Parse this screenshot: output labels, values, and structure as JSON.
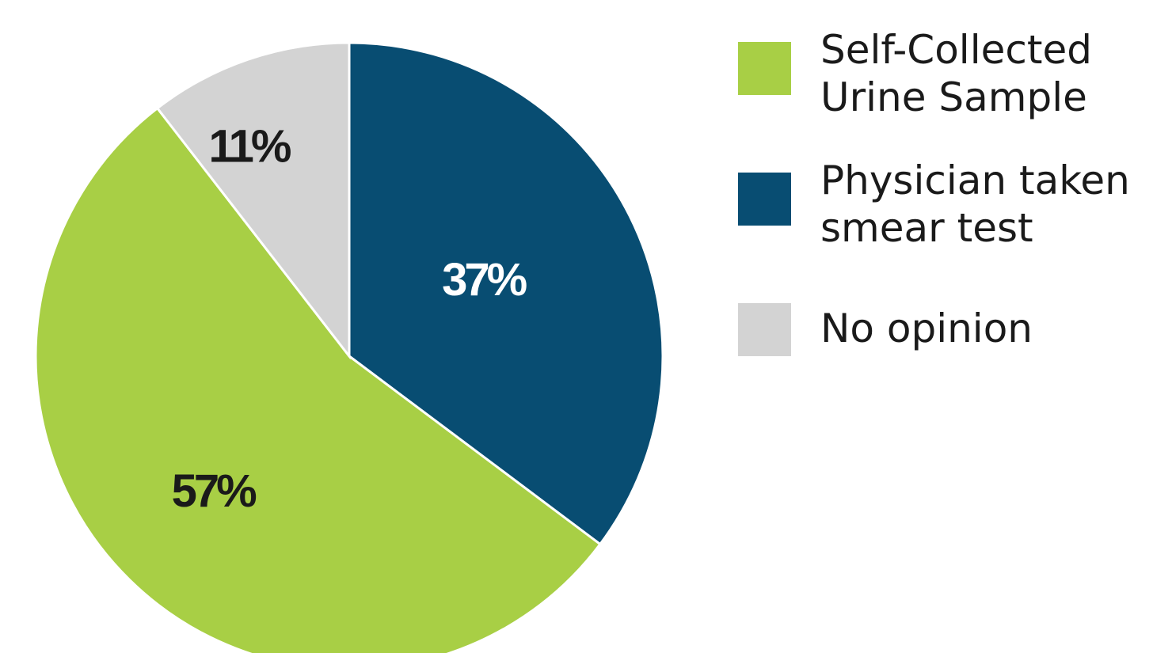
{
  "chart_data": {
    "type": "pie",
    "title": "",
    "slices": [
      {
        "label": "Physician taken smear test",
        "value": 37,
        "display": "37%",
        "color": "#084d72",
        "label_color": "#ffffff"
      },
      {
        "label": "Self-Collected Urine Sample",
        "value": 57,
        "display": "57%",
        "color": "#a8cf45",
        "label_color": "#1a1a1a"
      },
      {
        "label": "No opinion",
        "value": 11,
        "display": "11%",
        "color": "#d3d3d3",
        "label_color": "#1a1a1a"
      }
    ],
    "legend": {
      "placement": "right",
      "items": [
        {
          "label": "Self-Collected\nUrine Sample",
          "color": "#a8cf45"
        },
        {
          "label": "Physician taken\nsmear test",
          "color": "#084d72"
        },
        {
          "label": "No opinion",
          "color": "#d3d3d3"
        }
      ]
    }
  }
}
